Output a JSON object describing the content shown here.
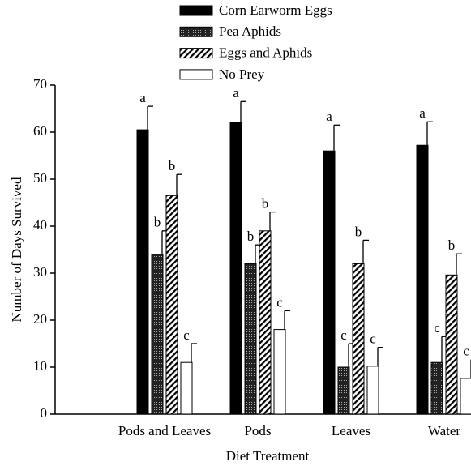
{
  "chart_data": {
    "type": "bar",
    "xlabel": "Diet Treatment",
    "ylabel": "Number of Days Survived",
    "categories": [
      "Pods and Leaves",
      "Pods",
      "Leaves",
      "Water"
    ],
    "series": [
      {
        "name": "Corn Earworm Eggs",
        "color": "#000000",
        "fill": "solid",
        "values": [
          60.5,
          62,
          56,
          57.2
        ],
        "errors": [
          5,
          4.5,
          5.5,
          5
        ],
        "letters": [
          "a",
          "a",
          "a",
          "a"
        ]
      },
      {
        "name": "Pea Aphids",
        "color": "#000000",
        "fill": "stipple",
        "values": [
          34,
          32,
          10,
          11
        ],
        "errors": [
          5,
          4,
          5,
          5.5
        ],
        "letters": [
          "b",
          "b",
          "c",
          "c"
        ]
      },
      {
        "name": "Eggs and Aphids",
        "color": "#000000",
        "fill": "hatch",
        "values": [
          46.5,
          39,
          32,
          29.6
        ],
        "errors": [
          4.5,
          4,
          5,
          4.5
        ],
        "letters": [
          "b",
          "b",
          "b",
          "b"
        ]
      },
      {
        "name": "No Prey",
        "color": "#000000",
        "fill": "empty",
        "values": [
          11,
          18,
          10.2,
          7.6
        ],
        "errors": [
          4,
          4,
          4,
          4
        ],
        "letters": [
          "c",
          "c",
          "c",
          "c"
        ]
      }
    ],
    "ylim": [
      0,
      70
    ],
    "yticks": [
      0,
      10,
      20,
      30,
      40,
      50,
      60,
      70
    ],
    "grid": false
  }
}
